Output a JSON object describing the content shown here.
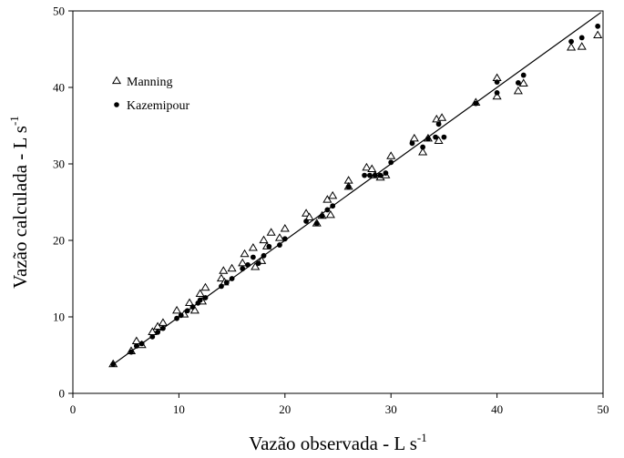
{
  "chart_data": {
    "type": "scatter",
    "xlabel": "Vazão observada - L s",
    "xlabel_sup": "-1",
    "ylabel": "Vazão calculada - L s",
    "ylabel_sup": "-1",
    "xlim": [
      0,
      50
    ],
    "ylim": [
      0,
      50
    ],
    "xticks": [
      "0",
      "10",
      "20",
      "30",
      "40",
      "50"
    ],
    "yticks": [
      "0",
      "10",
      "20",
      "30",
      "40",
      "50"
    ],
    "grid": false,
    "legend_position": "top-left",
    "reference_line": {
      "from": [
        3.8,
        3.8
      ],
      "to": [
        49.8,
        49.8
      ]
    },
    "series": [
      {
        "name": "Manning",
        "marker": "open-triangle",
        "points": [
          [
            3.8,
            3.8
          ],
          [
            5.5,
            5.5
          ],
          [
            6.0,
            6.8
          ],
          [
            6.5,
            6.3
          ],
          [
            7.5,
            8.0
          ],
          [
            8.0,
            8.7
          ],
          [
            8.5,
            9.2
          ],
          [
            9.8,
            10.8
          ],
          [
            10.5,
            10.3
          ],
          [
            11.0,
            11.8
          ],
          [
            11.5,
            10.8
          ],
          [
            12.0,
            13.0
          ],
          [
            12.5,
            13.8
          ],
          [
            12.2,
            12.0
          ],
          [
            14.0,
            15.0
          ],
          [
            14.2,
            16.0
          ],
          [
            15.0,
            16.3
          ],
          [
            14.3,
            14.5
          ],
          [
            16.0,
            17.0
          ],
          [
            16.2,
            18.2
          ],
          [
            17.0,
            19.0
          ],
          [
            17.2,
            16.5
          ],
          [
            17.8,
            17.3
          ],
          [
            18.0,
            20.0
          ],
          [
            18.3,
            19.2
          ],
          [
            18.7,
            21.0
          ],
          [
            19.5,
            20.3
          ],
          [
            20.0,
            21.5
          ],
          [
            22.0,
            23.5
          ],
          [
            22.3,
            23.0
          ],
          [
            23.0,
            22.2
          ],
          [
            24.0,
            25.3
          ],
          [
            24.5,
            25.8
          ],
          [
            23.5,
            23.2
          ],
          [
            24.3,
            23.3
          ],
          [
            26.0,
            27.8
          ],
          [
            26.0,
            27.0
          ],
          [
            27.7,
            29.5
          ],
          [
            28.2,
            29.3
          ],
          [
            28.5,
            28.5
          ],
          [
            29.0,
            28.2
          ],
          [
            29.5,
            28.5
          ],
          [
            30.0,
            31.0
          ],
          [
            32.2,
            33.3
          ],
          [
            33.0,
            31.5
          ],
          [
            33.5,
            33.3
          ],
          [
            34.3,
            35.8
          ],
          [
            34.8,
            36.0
          ],
          [
            34.5,
            33.0
          ],
          [
            38.0,
            38.0
          ],
          [
            40.0,
            41.2
          ],
          [
            40.0,
            38.8
          ],
          [
            42.0,
            39.5
          ],
          [
            42.5,
            40.5
          ],
          [
            47.0,
            45.2
          ],
          [
            48.0,
            45.3
          ],
          [
            49.5,
            46.8
          ]
        ]
      },
      {
        "name": "Kazemipour",
        "marker": "filled-circle",
        "points": [
          [
            3.8,
            3.8
          ],
          [
            5.5,
            5.4
          ],
          [
            6.0,
            6.2
          ],
          [
            6.5,
            6.5
          ],
          [
            7.5,
            7.4
          ],
          [
            8.0,
            8.0
          ],
          [
            8.5,
            8.5
          ],
          [
            9.8,
            9.8
          ],
          [
            10.2,
            10.2
          ],
          [
            10.8,
            10.8
          ],
          [
            11.3,
            11.3
          ],
          [
            11.8,
            11.8
          ],
          [
            12.0,
            12.2
          ],
          [
            12.5,
            12.5
          ],
          [
            14.0,
            14.0
          ],
          [
            14.5,
            14.5
          ],
          [
            15.0,
            15.0
          ],
          [
            16.0,
            16.3
          ],
          [
            16.5,
            16.8
          ],
          [
            17.0,
            17.8
          ],
          [
            17.5,
            17.0
          ],
          [
            18.0,
            18.0
          ],
          [
            18.5,
            19.2
          ],
          [
            19.5,
            19.4
          ],
          [
            20.0,
            20.2
          ],
          [
            22.0,
            22.5
          ],
          [
            23.0,
            22.2
          ],
          [
            23.5,
            23.2
          ],
          [
            24.0,
            24.0
          ],
          [
            24.5,
            24.5
          ],
          [
            26.0,
            27.0
          ],
          [
            27.5,
            28.5
          ],
          [
            28.0,
            28.5
          ],
          [
            28.5,
            28.5
          ],
          [
            29.0,
            28.5
          ],
          [
            29.5,
            28.8
          ],
          [
            30.0,
            30.2
          ],
          [
            32.0,
            32.7
          ],
          [
            33.0,
            32.2
          ],
          [
            33.5,
            33.3
          ],
          [
            34.2,
            33.5
          ],
          [
            34.5,
            35.2
          ],
          [
            35.0,
            33.5
          ],
          [
            38.0,
            37.9
          ],
          [
            40.0,
            40.7
          ],
          [
            40.0,
            39.3
          ],
          [
            42.0,
            40.6
          ],
          [
            42.5,
            41.6
          ],
          [
            47.0,
            46.0
          ],
          [
            48.0,
            46.5
          ],
          [
            49.5,
            48.0
          ]
        ]
      }
    ]
  }
}
